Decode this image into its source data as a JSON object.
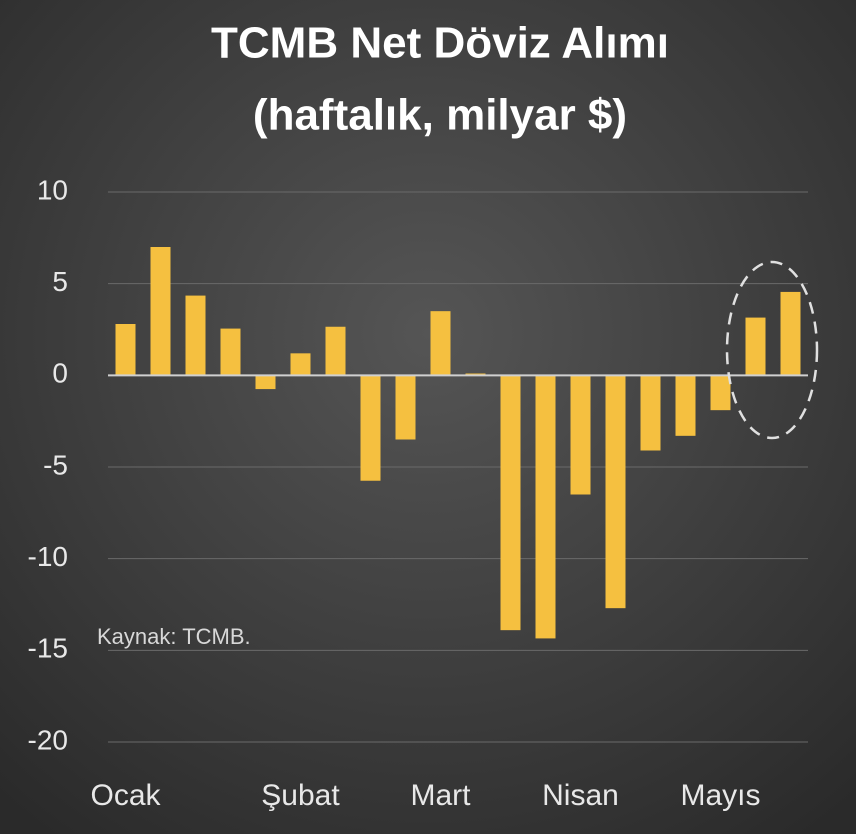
{
  "chart_data": {
    "type": "bar",
    "title": "TCMB Net Döviz Alımı",
    "subtitle": "(haftalık, milyar $)",
    "annotation": "Kaynak: TCMB.",
    "categories": [
      "Ocak",
      null,
      null,
      null,
      null,
      "Şubat",
      null,
      null,
      null,
      "Mart",
      null,
      null,
      null,
      "Nisan",
      null,
      null,
      null,
      "Mayıs",
      null,
      null
    ],
    "values": [
      2.8,
      7.0,
      4.35,
      2.55,
      -0.75,
      1.2,
      2.65,
      -5.75,
      -3.5,
      3.5,
      0.1,
      -13.9,
      -14.35,
      -6.5,
      -12.7,
      -4.1,
      -3.3,
      -1.9,
      3.15,
      4.55
    ],
    "color": "#f5c040",
    "ylim": [
      -20,
      10
    ],
    "yticks": [
      -20,
      -15,
      -10,
      -5,
      0,
      5,
      10
    ],
    "grid": true
  }
}
